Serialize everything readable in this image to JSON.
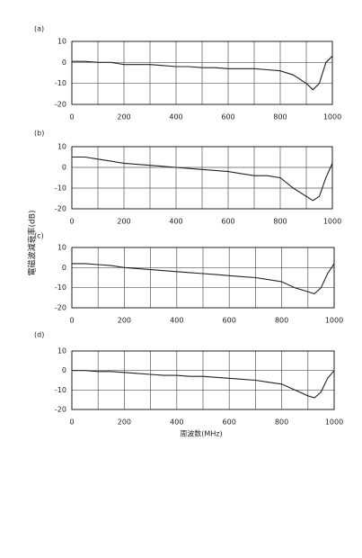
{
  "chart_data": [
    {
      "type": "line",
      "label": "(a)",
      "color": "#222",
      "grid": true,
      "x": [
        0,
        50,
        100,
        150,
        200,
        250,
        300,
        350,
        400,
        450,
        500,
        550,
        600,
        650,
        700,
        750,
        800,
        850,
        900,
        925,
        950,
        975,
        1000
      ],
      "values": [
        0.5,
        0.5,
        0,
        0,
        -1,
        -1,
        -1,
        -1.5,
        -2,
        -2,
        -2.5,
        -2.5,
        -3,
        -3,
        -3,
        -3.5,
        -4,
        -6,
        -10,
        -13,
        -10,
        0,
        3
      ],
      "xlim": [
        0,
        1000
      ],
      "ylim": [
        -20,
        10
      ],
      "xticks": [
        0,
        200,
        400,
        600,
        800,
        1000
      ],
      "yticks": [
        10,
        0,
        -10,
        -20
      ]
    },
    {
      "type": "line",
      "label": "(b)",
      "color": "#222",
      "grid": true,
      "ylabel": "電磁波減衰率(dB)",
      "x": [
        0,
        50,
        100,
        150,
        200,
        250,
        300,
        350,
        400,
        450,
        500,
        550,
        600,
        650,
        700,
        750,
        800,
        850,
        900,
        925,
        950,
        975,
        1000
      ],
      "values": [
        5,
        5,
        4,
        3,
        2,
        1.5,
        1,
        0.5,
        0,
        -0.5,
        -1,
        -1.5,
        -2,
        -3,
        -4,
        -4,
        -5,
        -10,
        -14,
        -16,
        -14,
        -5,
        2
      ],
      "xlim": [
        0,
        1000
      ],
      "ylim": [
        -20,
        10
      ],
      "xticks": [
        0,
        200,
        400,
        600,
        800,
        1000
      ],
      "yticks": [
        10,
        0,
        -10,
        -20
      ]
    },
    {
      "type": "line",
      "label": "(c)",
      "color": "#222",
      "grid": true,
      "x": [
        0,
        50,
        100,
        150,
        200,
        250,
        300,
        350,
        400,
        450,
        500,
        550,
        600,
        650,
        700,
        750,
        800,
        850,
        900,
        925,
        950,
        975,
        1000
      ],
      "values": [
        2,
        2,
        1.5,
        1,
        0,
        -0.5,
        -1,
        -1.5,
        -2,
        -2.5,
        -3,
        -3.5,
        -4,
        -4.5,
        -5,
        -6,
        -7,
        -10,
        -12,
        -13,
        -10,
        -3,
        2
      ],
      "xlim": [
        0,
        1000
      ],
      "ylim": [
        -20,
        10
      ],
      "xticks": [
        0,
        200,
        400,
        600,
        800,
        1000
      ],
      "yticks": [
        10,
        0,
        -10,
        -20
      ]
    },
    {
      "type": "line",
      "label": "(d)",
      "color": "#222",
      "grid": true,
      "xlabel": "周波数(MHz)",
      "x": [
        0,
        50,
        100,
        150,
        200,
        250,
        300,
        350,
        400,
        450,
        500,
        550,
        600,
        650,
        700,
        750,
        800,
        850,
        900,
        925,
        950,
        975,
        1000
      ],
      "values": [
        0,
        0,
        -0.5,
        -0.5,
        -1,
        -1.5,
        -2,
        -2.5,
        -2.5,
        -3,
        -3,
        -3.5,
        -4,
        -4.5,
        -5,
        -6,
        -7,
        -10,
        -13,
        -14,
        -11,
        -4,
        0
      ],
      "xlim": [
        0,
        1000
      ],
      "ylim": [
        -20,
        10
      ],
      "xticks": [
        0,
        200,
        400,
        600,
        800,
        1000
      ],
      "yticks": [
        10,
        0,
        -10,
        -20
      ]
    }
  ]
}
